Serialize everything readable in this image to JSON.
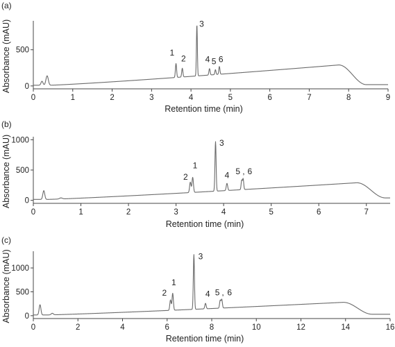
{
  "chart_data": [
    {
      "type": "line",
      "panel_label": "(a)",
      "xlabel": "Retention time (min)",
      "ylabel": "Absorbance (mAU)",
      "xlim": [
        0,
        9
      ],
      "ylim": [
        -40,
        900
      ],
      "xticks": [
        0,
        1,
        2,
        3,
        4,
        5,
        6,
        7,
        8,
        9
      ],
      "yticks": [
        0,
        500
      ],
      "grid": false,
      "baseline": {
        "start": 10,
        "ramp_start": 0.45,
        "ramp_end": 7.75,
        "ramp_top": 290,
        "drop_end": 8.45,
        "end": 18
      },
      "peaks": [
        {
          "x": 0.22,
          "y": 65,
          "w": 0.025
        },
        {
          "x": 0.35,
          "y": 140,
          "w": 0.03
        },
        {
          "label": "1",
          "x": 3.62,
          "y": 310,
          "w": 0.015
        },
        {
          "label": "2",
          "x": 3.78,
          "y": 245,
          "w": 0.015
        },
        {
          "label": "3",
          "x": 4.15,
          "y": 850,
          "w": 0.012
        },
        {
          "label": "4",
          "x": 4.47,
          "y": 240,
          "w": 0.015
        },
        {
          "label": "5",
          "x": 4.62,
          "y": 225,
          "w": 0.014
        },
        {
          "label": "6",
          "x": 4.72,
          "y": 270,
          "w": 0.014
        }
      ],
      "annotations": [
        {
          "text": "1",
          "x": 3.52,
          "y": 420
        },
        {
          "text": "2",
          "x": 3.81,
          "y": 340
        },
        {
          "text": "3",
          "x": 4.27,
          "y": 820
        },
        {
          "text": "4",
          "x": 4.42,
          "y": 330
        },
        {
          "text": "5",
          "x": 4.58,
          "y": 300
        },
        {
          "text": "6",
          "x": 4.76,
          "y": 330
        }
      ]
    },
    {
      "type": "line",
      "panel_label": "(b)",
      "xlabel": "Retention time (min)",
      "ylabel": "Absorbance (mAU)",
      "xlim": [
        0,
        7.5
      ],
      "ylim": [
        -50,
        1050
      ],
      "xticks": [
        0,
        1,
        2,
        3,
        4,
        5,
        6,
        7
      ],
      "yticks": [
        0,
        500,
        1000
      ],
      "grid": false,
      "baseline": {
        "start": 15,
        "ramp_start": 0.3,
        "ramp_end": 6.8,
        "ramp_top": 290,
        "drop_end": 7.4,
        "end": 40
      },
      "peaks": [
        {
          "x": 0.22,
          "y": 160,
          "w": 0.02
        },
        {
          "x": 0.58,
          "y": 40,
          "w": 0.03
        },
        {
          "label": "2",
          "x": 3.3,
          "y": 300,
          "w": 0.015
        },
        {
          "label": "1",
          "x": 3.35,
          "y": 380,
          "w": 0.015
        },
        {
          "label": "3",
          "x": 3.83,
          "y": 970,
          "w": 0.012
        },
        {
          "label": "4",
          "x": 4.07,
          "y": 280,
          "w": 0.015
        },
        {
          "label": "5",
          "x": 4.38,
          "y": 330,
          "w": 0.012
        },
        {
          "label": "6",
          "x": 4.41,
          "y": 355,
          "w": 0.012
        }
      ],
      "annotations": [
        {
          "text": "2",
          "x": 3.2,
          "y": 340
        },
        {
          "text": "1",
          "x": 3.4,
          "y": 530
        },
        {
          "text": "3",
          "x": 3.96,
          "y": 900
        },
        {
          "text": "4",
          "x": 4.07,
          "y": 370
        },
        {
          "text": "5",
          "x": 4.3,
          "y": 430
        },
        {
          "text": ",",
          "x": 4.42,
          "y": 430
        },
        {
          "text": "6",
          "x": 4.55,
          "y": 430
        }
      ]
    },
    {
      "type": "line",
      "panel_label": "(c)",
      "xlabel": "Retention time (min)",
      "ylabel": "Absorbance (mAU)",
      "xlim": [
        0,
        16
      ],
      "ylim": [
        -60,
        1350
      ],
      "xticks": [
        0,
        2,
        4,
        6,
        8,
        10,
        12,
        14,
        16
      ],
      "yticks": [
        0,
        500,
        1000
      ],
      "grid": false,
      "baseline": {
        "start": 15,
        "ramp_start": 0.6,
        "ramp_end": 13.9,
        "ramp_top": 280,
        "drop_end": 15.2,
        "end": 30
      },
      "peaks": [
        {
          "x": 0.3,
          "y": 230,
          "w": 0.04
        },
        {
          "x": 0.85,
          "y": 50,
          "w": 0.05
        },
        {
          "label": "2",
          "x": 6.15,
          "y": 330,
          "w": 0.03
        },
        {
          "label": "1",
          "x": 6.25,
          "y": 470,
          "w": 0.03
        },
        {
          "label": "3",
          "x": 7.2,
          "y": 1280,
          "w": 0.025
        },
        {
          "label": "4",
          "x": 7.72,
          "y": 260,
          "w": 0.03
        },
        {
          "label": "5",
          "x": 8.38,
          "y": 320,
          "w": 0.028
        },
        {
          "label": "6",
          "x": 8.45,
          "y": 340,
          "w": 0.028
        }
      ],
      "annotations": [
        {
          "text": "2",
          "x": 5.88,
          "y": 420
        },
        {
          "text": "1",
          "x": 6.3,
          "y": 640
        },
        {
          "text": "3",
          "x": 7.5,
          "y": 1180
        },
        {
          "text": "4",
          "x": 7.82,
          "y": 400
        },
        {
          "text": "5",
          "x": 8.25,
          "y": 430
        },
        {
          "text": ",",
          "x": 8.5,
          "y": 430
        },
        {
          "text": "6",
          "x": 8.8,
          "y": 430
        }
      ]
    }
  ]
}
